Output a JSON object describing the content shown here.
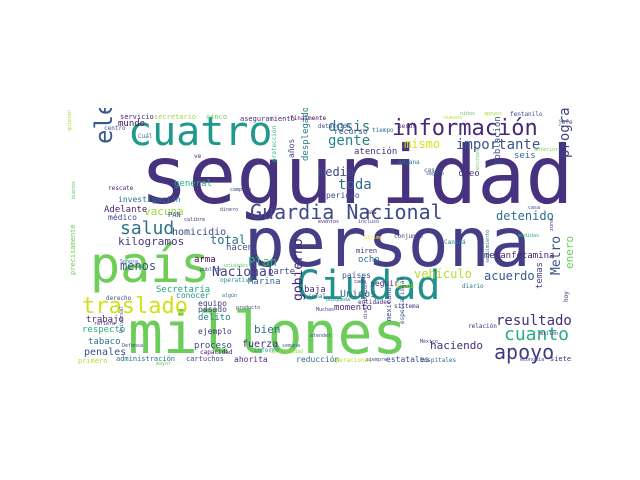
{
  "words": {
    "seguridad": "seguridad",
    "persona": "persona",
    "millones": "millones",
    "pais": "país",
    "cuatro": "cuatro",
    "ciudad": "Ciudad",
    "guardia_nacional": "Guardia Nacional",
    "informacion": "información",
    "elemento": "elemento",
    "traslado": "traslado",
    "salud": "salud",
    "apoyo": "apoyo",
    "cuanto": "cuanto",
    "resultado": "resultado",
    "importante": "importante",
    "dosis": "dosis",
    "gente": "gente",
    "mismo": "mismo",
    "toda": "toda",
    "medio": "medio",
    "detenido": "detenido",
    "programa": "programa",
    "metro": "Metro",
    "acuerdo": "acuerdo",
    "vehiculo": "vehículo",
    "gobierno": "gobierno",
    "menos": "menos",
    "nacional": "Nacional",
    "total": "total",
    "kilogramos": "kilogramos",
    "vacuna": "vacuna",
    "homicidio": "homicidio",
    "adelante": "Adelante",
    "plan": "Plan",
    "haciendo": "haciendo",
    "metanfetamina": "metanfetamina",
    "enero": "enero",
    "unidos": "Unidos",
    "bien": "bien",
    "fuerza": "fuerza",
    "proceso": "proceso",
    "penales": "penales",
    "tabaco": "tabaco",
    "trabajo": "trabajo",
    "respecto": "respecto",
    "ejemplo": "ejemplo",
    "delito": "delito",
    "hacen": "hacen",
    "arma": "arma",
    "equipo": "equipo",
    "mundo": "mundo",
    "medico": "médico",
    "secretaria": "Secretaría",
    "marina": "Marina",
    "parte": "parte",
    "baja": "baja",
    "ocho": "ocho",
    "momento": "momento",
    "general": "general",
    "periodo": "periodo",
    "atencion": "atención",
    "desplegado": "desplegado",
    "poblacion": "población",
    "seis": "seis",
    "creo": "creo",
    "temas": "temas",
    "conocer": "conocer",
    "pasado": "pasado",
    "anos": "años",
    "recurso": "recurso",
    "servicio": "servicio",
    "aseguramiento": "aseguramiento",
    "investigacion": "investigación",
    "paises": "países",
    "seguir": "seguir",
    "ahorita": "ahorita",
    "reduccion": "reducción",
    "estatales": "estatales",
    "administracion": "administración",
    "cartuchos": "cartuchos",
    "primero": "primero",
    "siete": "siete",
    "centro": "centro",
    "rescate": "rescate",
    "pan": "PAN",
    "informe": "informe",
    "capacidad": "capacidad",
    "mexicano": "mexicano",
    "hospitales": "hospitales",
    "miren": "miren",
    "canada": "Canadá",
    "relacion": "relación",
    "jefe": "jefe",
    "hoy": "hoy",
    "fentanilo": "fentanilo",
    "secretario": "secretario",
    "cinco": "cinco",
    "finalmente": "finalmente",
    "deteccion": "detección",
    "pesos": "pesos",
    "tiempo": "tiempo",
    "aduana": "aduana",
    "casos": "casos",
    "conjunto": "conjunto",
    "proteccion": "protección",
    "campana": "campaña",
    "calibre": "calibre",
    "sonora": "Sonora",
    "publica": "pública",
    "unidades": "unidades",
    "operativo": "operativo",
    "derecho": "derecho",
    "refiere": "refiere",
    "universal": "Universal",
    "cual": "Cuál",
    "ve": "ve",
    "dinero": "dinero",
    "senal": "señal",
    "entidades": "entidades",
    "muchas": "Muchas",
    "semana": "semana",
    "especialistas": "especialistas",
    "eventos": "eventos",
    "incluso": "incluso",
    "droga": "droga",
    "diario": "diario",
    "sistema": "sistema",
    "economia": "economía",
    "operaciones": "operaciones",
    "siempre": "siempre",
    "cada": "cada",
    "algun": "algún",
    "producto": "producto",
    "busqueda": "búsqueda",
    "precisamente": "precisamente",
    "seguro": "seguro",
    "ultimo": "último",
    "mas": "mas",
    "defensa": "Defensa",
    "quieren": "quieren",
    "buenos": "buenos",
    "nuevos": "nuevos",
    "apoyos": "apoyos",
    "ninos": "niños",
    "casa": "casa",
    "anterior": "anterior",
    "zona": "zona",
    "medidas": "medidas",
    "seguimiento": "seguimiento",
    "atender": "atender",
    "distribucion": "distribución",
    "oportunidad": "oportunidad",
    "recursos": "recursos",
    "mexico": "México",
    "mayor": "mayor",
    "millon": "millón"
  }
}
